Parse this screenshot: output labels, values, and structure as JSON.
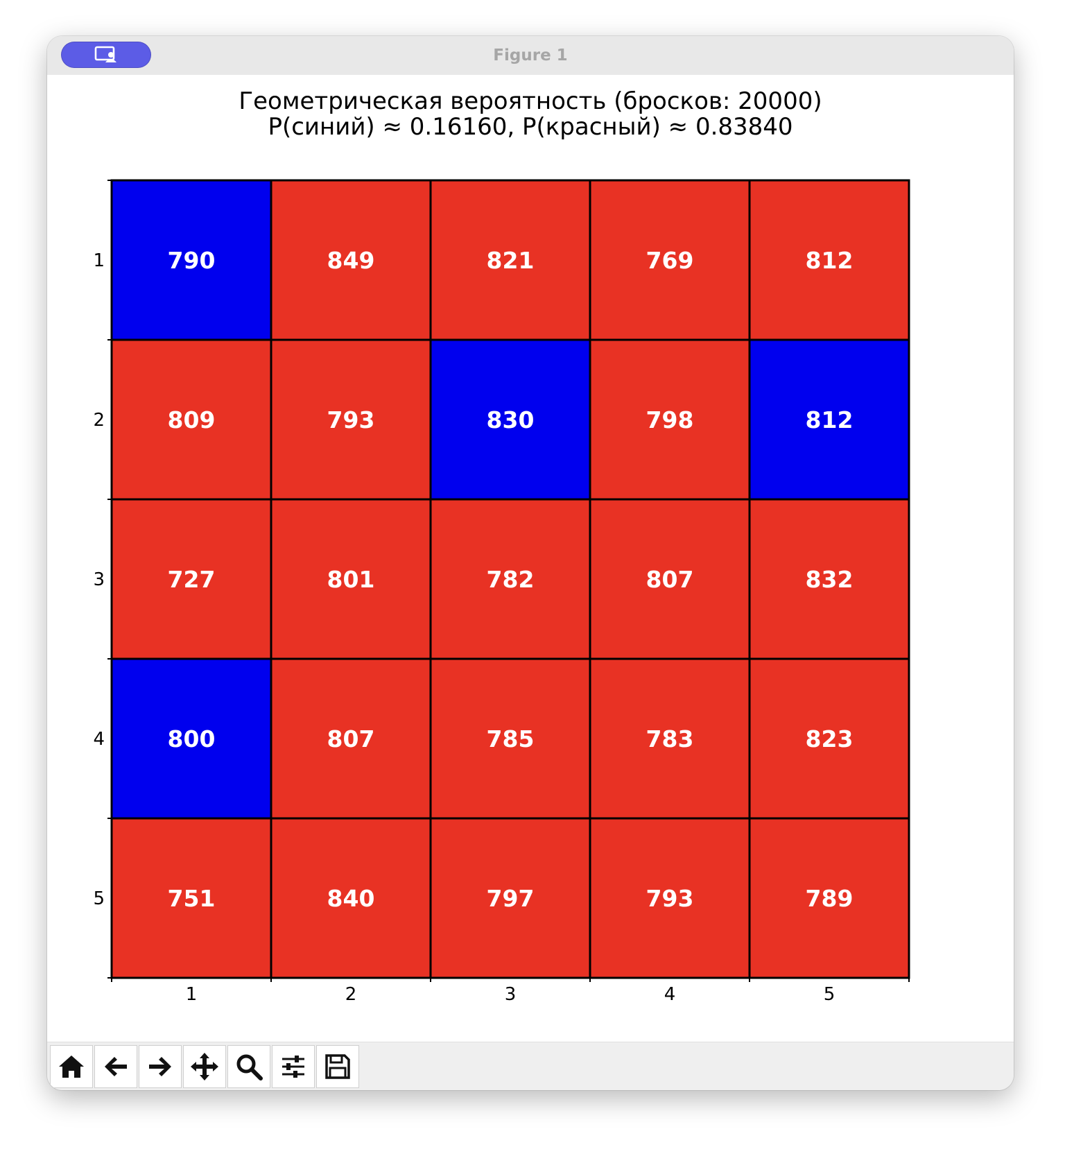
{
  "window": {
    "title": "Figure 1",
    "titlebar_color": "#e8e8e8",
    "pill_color": "#5c5ce6"
  },
  "figure": {
    "title_line1": "Геометрическая вероятность (бросков: 20000)",
    "title_line2": "P(синий) ≈ 0.16160, P(красный) ≈ 0.83840"
  },
  "chart_data": {
    "type": "heatmap",
    "title": "Геометрическая вероятность (бросков: 20000)\nP(синий) ≈ 0.16160, P(красный) ≈ 0.83840",
    "xlabel": "",
    "ylabel": "",
    "x_ticks": [
      "1",
      "2",
      "3",
      "4",
      "5"
    ],
    "y_ticks": [
      "1",
      "2",
      "3",
      "4",
      "5"
    ],
    "values": [
      [
        790,
        849,
        821,
        769,
        812
      ],
      [
        809,
        793,
        830,
        798,
        812
      ],
      [
        727,
        801,
        782,
        807,
        832
      ],
      [
        800,
        807,
        785,
        783,
        823
      ],
      [
        751,
        840,
        797,
        793,
        789
      ]
    ],
    "cell_colors": [
      [
        "blue",
        "red",
        "red",
        "red",
        "red"
      ],
      [
        "red",
        "red",
        "blue",
        "red",
        "blue"
      ],
      [
        "red",
        "red",
        "red",
        "red",
        "red"
      ],
      [
        "blue",
        "red",
        "red",
        "red",
        "red"
      ],
      [
        "red",
        "red",
        "red",
        "red",
        "red"
      ]
    ],
    "colors": {
      "blue": "#0000ee",
      "red": "#e83224"
    },
    "grid": true,
    "legend": "none"
  },
  "toolbar": {
    "buttons": [
      {
        "name": "home-button",
        "icon": "home-icon"
      },
      {
        "name": "back-button",
        "icon": "arrow-left-icon"
      },
      {
        "name": "forward-button",
        "icon": "arrow-right-icon"
      },
      {
        "name": "pan-button",
        "icon": "move-icon"
      },
      {
        "name": "zoom-button",
        "icon": "magnifier-icon"
      },
      {
        "name": "configure-subplots-button",
        "icon": "sliders-icon"
      },
      {
        "name": "save-button",
        "icon": "floppy-disk-icon"
      }
    ]
  }
}
